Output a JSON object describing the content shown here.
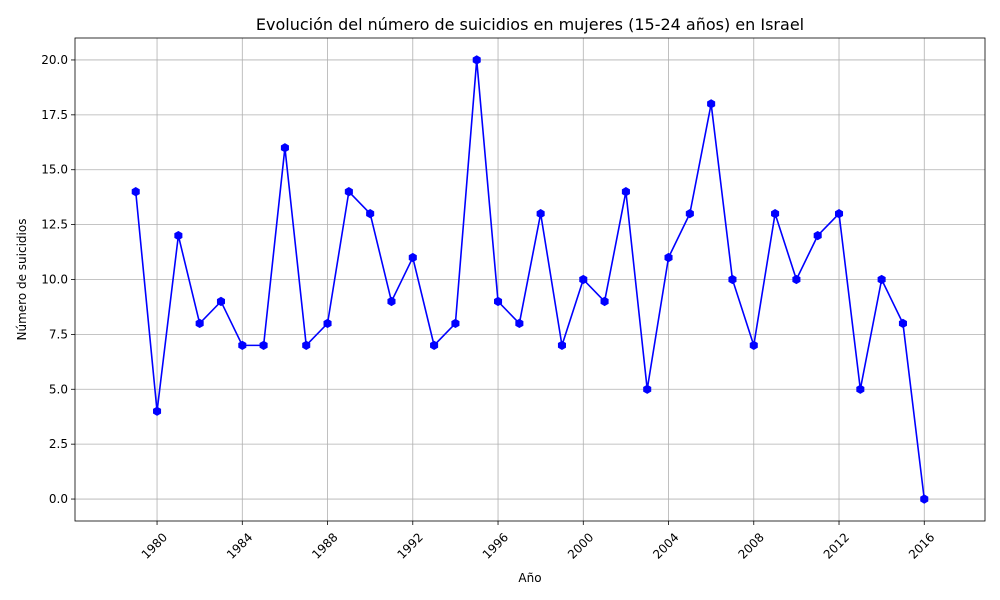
{
  "chart_data": {
    "type": "line",
    "title": "Evolución del número de suicidios en mujeres (15-24 años) en Israel",
    "xlabel": "Año",
    "ylabel": "Número de suicidios",
    "x": [
      1979,
      1980,
      1981,
      1982,
      1983,
      1984,
      1985,
      1986,
      1987,
      1988,
      1989,
      1990,
      1991,
      1992,
      1993,
      1994,
      1995,
      1996,
      1997,
      1998,
      1999,
      2000,
      2001,
      2002,
      2003,
      2004,
      2005,
      2006,
      2007,
      2008,
      2009,
      2010,
      2011,
      2012,
      2013,
      2014,
      2015,
      2016
    ],
    "series": [
      {
        "values": [
          14,
          4,
          12,
          8,
          9,
          7,
          7,
          16,
          7,
          8,
          14,
          13,
          9,
          11,
          7,
          8,
          20,
          9,
          8,
          13,
          7,
          10,
          9,
          14,
          5,
          11,
          13,
          18,
          10,
          7,
          13,
          10,
          12,
          13,
          5,
          10,
          8,
          0
        ]
      }
    ],
    "xlim": [
      1976.15,
      2018.85
    ],
    "ylim": [
      -1,
      21
    ],
    "xticks": [
      1980,
      1984,
      1988,
      1992,
      1996,
      2000,
      2004,
      2008,
      2012,
      2016
    ],
    "xtick_labels": [
      "1980",
      "1984",
      "1988",
      "1992",
      "1996",
      "2000",
      "2004",
      "2008",
      "2012",
      "2016"
    ],
    "yticks": [
      0,
      2.5,
      5,
      7.5,
      10,
      12.5,
      15,
      17.5,
      20
    ],
    "ytick_labels": [
      "0.0",
      "2.5",
      "5.0",
      "7.5",
      "10.0",
      "12.5",
      "15.0",
      "17.5",
      "20.0"
    ],
    "grid": true,
    "line_color": "#0000ff",
    "marker": "hexagon"
  }
}
